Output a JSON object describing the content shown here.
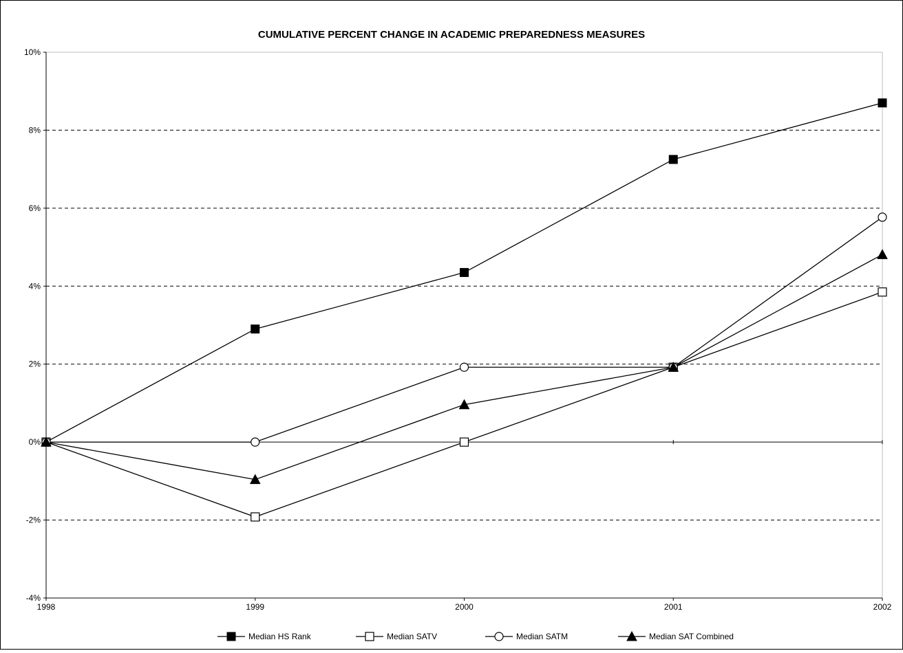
{
  "chart_data": {
    "type": "line",
    "title": "CUMULATIVE PERCENT CHANGE IN ACADEMIC PREPAREDNESS MEASURES",
    "xlabel": "",
    "ylabel": "",
    "categories": [
      "1998",
      "1999",
      "2000",
      "2001",
      "2002"
    ],
    "y_ticks": [
      "10%",
      "8%",
      "6%",
      "4%",
      "2%",
      "0%",
      "-2%",
      "-4%"
    ],
    "y_tick_values": [
      10,
      8,
      6,
      4,
      2,
      0,
      -2,
      -4
    ],
    "ylim": [
      -4,
      10
    ],
    "y_unit": "%",
    "grid": "horizontal dashed",
    "legend_position": "bottom",
    "series": [
      {
        "name": "Median HS Rank",
        "marker": "filled-square",
        "values": [
          0,
          2.9,
          4.35,
          7.25,
          8.7
        ]
      },
      {
        "name": "Median SATV",
        "marker": "open-square",
        "values": [
          0,
          -1.92,
          0,
          1.92,
          3.85
        ]
      },
      {
        "name": "Median SATM",
        "marker": "open-circle",
        "values": [
          0,
          0,
          1.92,
          1.92,
          5.77
        ]
      },
      {
        "name": "Median SAT Combined",
        "marker": "filled-triangle",
        "values": [
          0,
          -0.96,
          0.96,
          1.92,
          4.81
        ]
      }
    ]
  }
}
